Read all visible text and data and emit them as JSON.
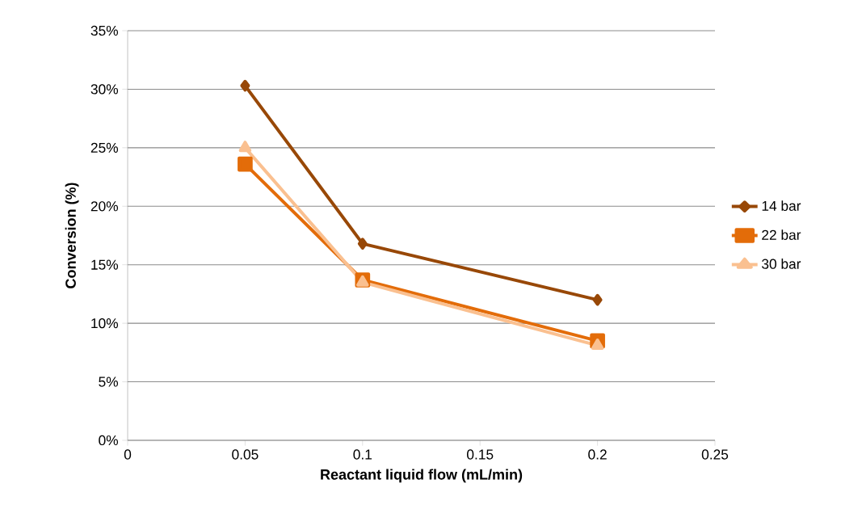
{
  "chart_data": {
    "type": "line",
    "xlabel": "Reactant liquid flow (mL/min)",
    "ylabel": "Conversion (%)",
    "x": [
      0.05,
      0.1,
      0.2
    ],
    "series": [
      {
        "name": "14 bar",
        "color": "#984807",
        "marker": "diamond",
        "values": [
          30.3,
          16.8,
          12.0
        ]
      },
      {
        "name": "22 bar",
        "color": "#e36c09",
        "marker": "square",
        "values": [
          23.6,
          13.7,
          8.5
        ]
      },
      {
        "name": "30 bar",
        "color": "#fac090",
        "marker": "triangle",
        "values": [
          25.0,
          13.5,
          8.1
        ]
      }
    ],
    "xlim": [
      0,
      0.25
    ],
    "xticks": [
      0,
      0.05,
      0.1,
      0.15,
      0.2,
      0.25
    ],
    "ylim": [
      0,
      35
    ],
    "yticks": [
      {
        "value": 0,
        "label": "0%"
      },
      {
        "value": 5,
        "label": "5%"
      },
      {
        "value": 10,
        "label": "10%"
      },
      {
        "value": 15,
        "label": "15%"
      },
      {
        "value": 20,
        "label": "20%"
      },
      {
        "value": 25,
        "label": "25%"
      },
      {
        "value": 30,
        "label": "30%"
      },
      {
        "value": 35,
        "label": "35%"
      }
    ],
    "grid": "y",
    "legend": "right",
    "line_style": "solid"
  }
}
